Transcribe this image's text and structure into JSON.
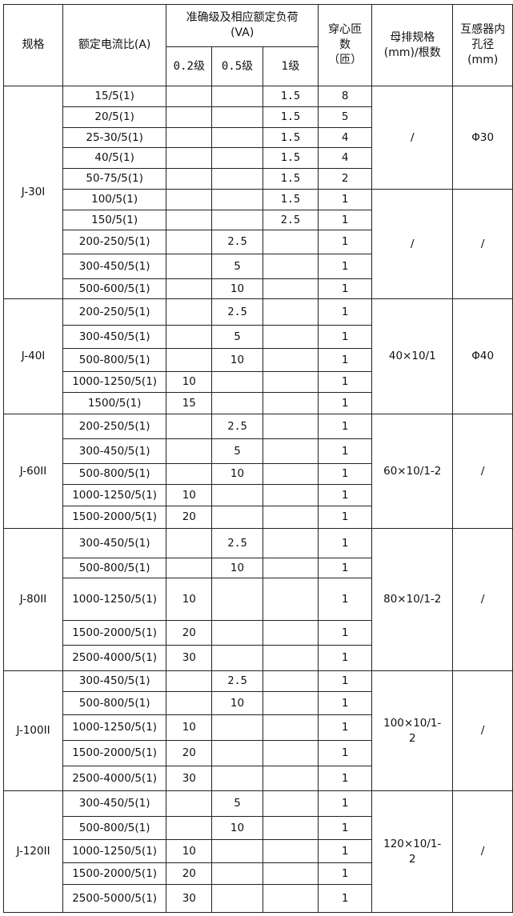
{
  "header": {
    "spec": "规格",
    "ratio": "额定电流比(A)",
    "accuracy_group": "准确级及相应额定负荷(VA)",
    "class_02": "0.2级",
    "class_05": "0.5级",
    "class_1": "1级",
    "turns": "穿心匝数（匝）",
    "busbar": "母排规格(mm)/根数",
    "hole": "互感器内孔径(mm)"
  },
  "groups": [
    {
      "spec": "J-30I",
      "rows": [
        [
          "15/5(1)",
          "",
          "",
          "1.5",
          "8"
        ],
        [
          "20/5(1)",
          "",
          "",
          "1.5",
          "5"
        ],
        [
          "25-30/5(1)",
          "",
          "",
          "1.5",
          "4"
        ],
        [
          "40/5(1)",
          "",
          "",
          "1.5",
          "4"
        ],
        [
          "50-75/5(1)",
          "",
          "",
          "1.5",
          "2"
        ],
        [
          "100/5(1)",
          "",
          "",
          "1.5",
          "1"
        ],
        [
          "150/5(1)",
          "",
          "",
          "2.5",
          "1"
        ],
        [
          "200-250/5(1)",
          "",
          "2.5",
          "",
          "1"
        ],
        [
          "300-450/5(1)",
          "",
          "5",
          "",
          "1"
        ],
        [
          "500-600/5(1)",
          "",
          "10",
          "",
          "1"
        ]
      ],
      "segments": [
        {
          "busbar": "/",
          "hole": "Φ30",
          "rows": 5
        },
        {
          "busbar": "/",
          "hole": "/",
          "rows": 5
        }
      ]
    },
    {
      "spec": "J-40I",
      "rows": [
        [
          "200-250/5(1)",
          "",
          "2.5",
          "",
          "1"
        ],
        [
          "300-450/5(1)",
          "",
          "5",
          "",
          "1"
        ],
        [
          "500-800/5(1)",
          "",
          "10",
          "",
          "1"
        ],
        [
          "1000-1250/5(1)",
          "10",
          "",
          "",
          "1"
        ],
        [
          "1500/5(1)",
          "15",
          "",
          "",
          "1"
        ]
      ],
      "segments": [
        {
          "busbar": "40×10/1",
          "hole": "Φ40",
          "rows": 5
        }
      ]
    },
    {
      "spec": "J-60II",
      "rows": [
        [
          "200-250/5(1)",
          "",
          "2.5",
          "",
          "1"
        ],
        [
          "300-450/5(1)",
          "",
          "5",
          "",
          "1"
        ],
        [
          "500-800/5(1)",
          "",
          "10",
          "",
          "1"
        ],
        [
          "1000-1250/5(1)",
          "10",
          "",
          "",
          "1"
        ],
        [
          "1500-2000/5(1)",
          "20",
          "",
          "",
          "1"
        ]
      ],
      "segments": [
        {
          "busbar": "60×10/1-2",
          "hole": "/",
          "rows": 5
        }
      ]
    },
    {
      "spec": "J-80II",
      "rows": [
        [
          "300-450/5(1)",
          "",
          "2.5",
          "",
          "1"
        ],
        [
          "500-800/5(1)",
          "",
          "10",
          "",
          "1"
        ],
        [
          "1000-1250/5(1)",
          "10",
          "",
          "",
          "1"
        ],
        [
          "1500-2000/5(1)",
          "20",
          "",
          "",
          "1"
        ],
        [
          "2500-4000/5(1)",
          "30",
          "",
          "",
          "1"
        ]
      ],
      "segments": [
        {
          "busbar": "80×10/1-2",
          "hole": "/",
          "rows": 5
        }
      ]
    },
    {
      "spec": "J-100II",
      "rows": [
        [
          "300-450/5(1)",
          "",
          "2.5",
          "",
          "1"
        ],
        [
          "500-800/5(1)",
          "",
          "10",
          "",
          "1"
        ],
        [
          "1000-1250/5(1)",
          "10",
          "",
          "",
          "1"
        ],
        [
          "1500-2000/5(1)",
          "20",
          "",
          "",
          "1"
        ],
        [
          "2500-4000/5(1)",
          "30",
          "",
          "",
          "1"
        ]
      ],
      "segments": [
        {
          "busbar": "100×10/1-2",
          "hole": "/",
          "rows": 5
        }
      ]
    },
    {
      "spec": "J-120II",
      "rows": [
        [
          "300-450/5(1)",
          "",
          "5",
          "",
          "1"
        ],
        [
          "500-800/5(1)",
          "",
          "10",
          "",
          "1"
        ],
        [
          "1000-1250/5(1)",
          "10",
          "",
          "",
          "1"
        ],
        [
          "1500-2000/5(1)",
          "20",
          "",
          "",
          "1"
        ],
        [
          "2500-5000/5(1)",
          "30",
          "",
          "",
          "1"
        ]
      ],
      "segments": [
        {
          "busbar": "120×10/1-2",
          "hole": "/",
          "rows": 5
        }
      ]
    }
  ]
}
